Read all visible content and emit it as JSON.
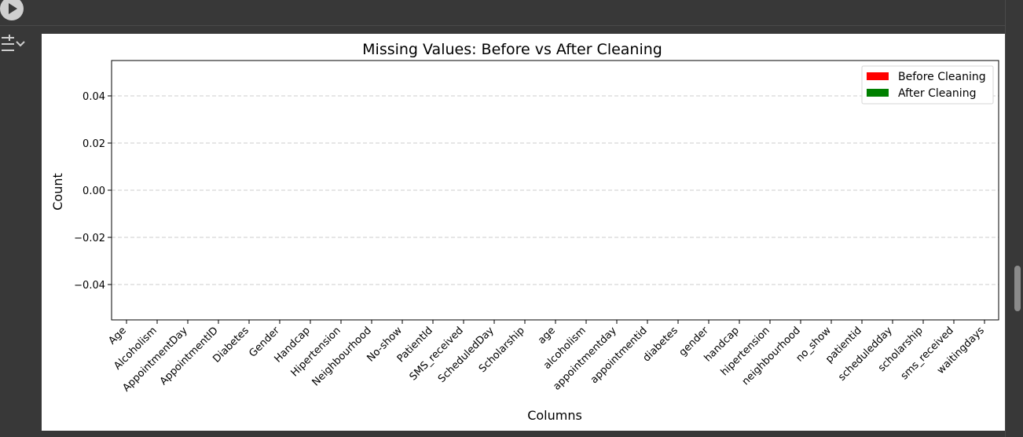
{
  "toolbar": {
    "run_icon": "play-circle-icon",
    "output_icon": "output-collapse-icon"
  },
  "chart_data": {
    "type": "bar",
    "title": "Missing Values: Before vs After Cleaning",
    "xlabel": "Columns",
    "ylabel": "Count",
    "ylim": [
      -0.055,
      0.055
    ],
    "yticks": [
      {
        "v": 0.04,
        "label": "0.04"
      },
      {
        "v": 0.02,
        "label": "0.02"
      },
      {
        "v": 0.0,
        "label": "0.00"
      },
      {
        "v": -0.02,
        "label": "−0.02"
      },
      {
        "v": -0.04,
        "label": "−0.04"
      }
    ],
    "grid": "y-dashed",
    "legend_position": "top-right",
    "categories": [
      "Age",
      "Alcoholism",
      "AppointmentDay",
      "AppointmentID",
      "Diabetes",
      "Gender",
      "Handcap",
      "Hipertension",
      "Neighbourhood",
      "No-show",
      "PatientId",
      "SMS_received",
      "ScheduledDay",
      "Scholarship",
      "age",
      "alcoholism",
      "appointmentday",
      "appointmentid",
      "diabetes",
      "gender",
      "handcap",
      "hipertension",
      "neighbourhood",
      "no_show",
      "patientid",
      "scheduledday",
      "scholarship",
      "sms_received",
      "waitingdays"
    ],
    "series": [
      {
        "name": "Before Cleaning",
        "color": "#ff0000",
        "values": [
          0,
          0,
          0,
          0,
          0,
          0,
          0,
          0,
          0,
          0,
          0,
          0,
          0,
          0,
          0,
          0,
          0,
          0,
          0,
          0,
          0,
          0,
          0,
          0,
          0,
          0,
          0,
          0,
          0
        ]
      },
      {
        "name": "After Cleaning",
        "color": "#008000",
        "values": [
          0,
          0,
          0,
          0,
          0,
          0,
          0,
          0,
          0,
          0,
          0,
          0,
          0,
          0,
          0,
          0,
          0,
          0,
          0,
          0,
          0,
          0,
          0,
          0,
          0,
          0,
          0,
          0,
          0
        ]
      }
    ]
  }
}
